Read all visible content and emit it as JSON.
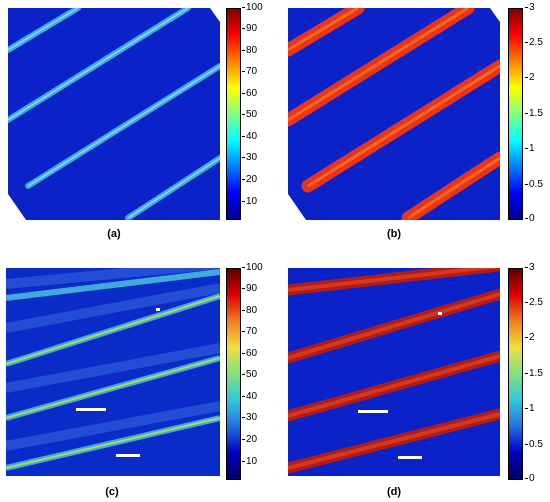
{
  "figure": {
    "panels": [
      {
        "id": "a",
        "caption": "(a)",
        "colorbar_ticks": [
          "100",
          "90",
          "80",
          "70",
          "60",
          "50",
          "40",
          "30",
          "20",
          "10"
        ],
        "colormap": "jet"
      },
      {
        "id": "b",
        "caption": "(b)",
        "colorbar_ticks": [
          "3",
          "2.5",
          "2",
          "1.5",
          "1",
          "0.5",
          "0"
        ],
        "colormap": "jet"
      },
      {
        "id": "c",
        "caption": "(c)",
        "colorbar_ticks": [
          "100",
          "90",
          "80",
          "70",
          "60",
          "50",
          "40",
          "30",
          "20",
          "10"
        ],
        "colormap": "jet-dark"
      },
      {
        "id": "d",
        "caption": "(d)",
        "colorbar_ticks": [
          "3",
          "2.5",
          "2",
          "1.5",
          "1",
          "0.5",
          "0"
        ],
        "colormap": "jet-dark"
      }
    ],
    "colors": {
      "background_blue": "#0a22c8",
      "stripe_cyan": "#3fb6e6",
      "stripe_red": "#e8341c",
      "stripe_dark_red": "#b01c18"
    }
  }
}
